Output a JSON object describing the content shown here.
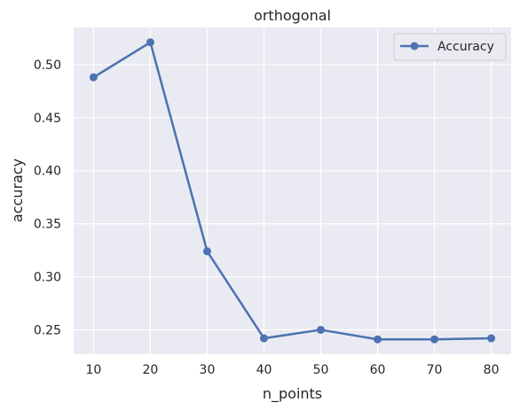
{
  "chart_data": {
    "type": "line",
    "title": "orthogonal",
    "xlabel": "n_points",
    "ylabel": "accuracy",
    "x": [
      10,
      20,
      30,
      40,
      50,
      60,
      70,
      80
    ],
    "series": [
      {
        "name": "Accuracy",
        "color": "#4c72b0",
        "marker": "circle",
        "values": [
          0.488,
          0.521,
          0.324,
          0.242,
          0.25,
          0.241,
          0.241,
          0.242
        ]
      }
    ],
    "xticks": [
      "10",
      "20",
      "30",
      "40",
      "50",
      "60",
      "70",
      "80"
    ],
    "yticks": [
      "0.25",
      "0.30",
      "0.35",
      "0.40",
      "0.45",
      "0.50"
    ],
    "xlim": [
      6.5,
      83.5
    ],
    "ylim": [
      0.227,
      0.535
    ],
    "grid": true,
    "legend_position": "top-right",
    "background_color": "#eaeaf2",
    "grid_color": "#ffffff"
  }
}
